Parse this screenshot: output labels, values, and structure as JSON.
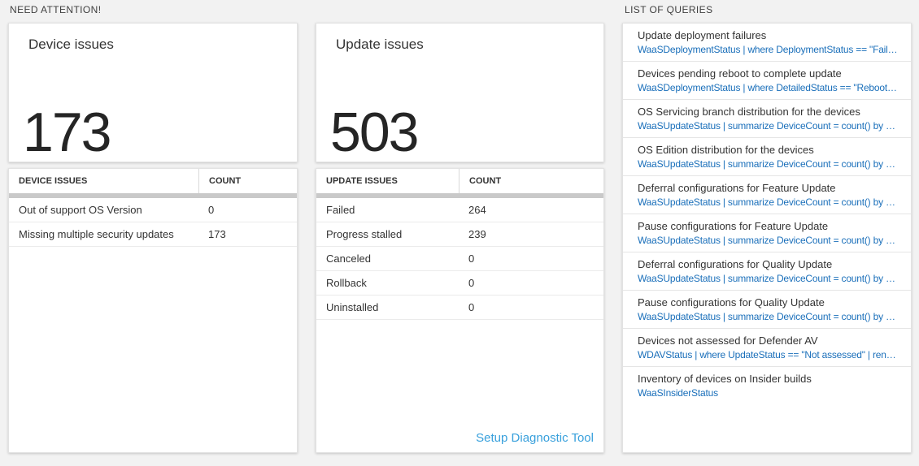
{
  "sections": {
    "need_attention_title": "NEED ATTENTION!",
    "queries_title": "LIST OF QUERIES"
  },
  "device_card": {
    "title": "Device issues",
    "count": "173"
  },
  "update_card": {
    "title": "Update issues",
    "count": "503"
  },
  "device_table": {
    "headers": [
      "DEVICE ISSUES",
      "COUNT"
    ],
    "rows": [
      {
        "label": "Out of support OS Version",
        "count": "0"
      },
      {
        "label": "Missing multiple security updates",
        "count": "173"
      }
    ]
  },
  "update_table": {
    "headers": [
      "UPDATE ISSUES",
      "COUNT"
    ],
    "rows": [
      {
        "label": "Failed",
        "count": "264"
      },
      {
        "label": "Progress stalled",
        "count": "239"
      },
      {
        "label": "Canceled",
        "count": "0"
      },
      {
        "label": "Rollback",
        "count": "0"
      },
      {
        "label": "Uninstalled",
        "count": "0"
      }
    ],
    "footer_link": "Setup Diagnostic Tool"
  },
  "query_list": {
    "items": [
      {
        "title": "Update deployment failures",
        "query": "WaaSDeploymentStatus | where DeploymentStatus == \"Failed\" |..."
      },
      {
        "title": "Devices pending reboot to complete update",
        "query": "WaaSDeploymentStatus | where DetailedStatus == \"Reboot pend..."
      },
      {
        "title": "OS Servicing branch distribution for the devices",
        "query": "WaaSUpdateStatus | summarize DeviceCount = count() by OSSer..."
      },
      {
        "title": "OS Edition distribution for the devices",
        "query": "WaaSUpdateStatus | summarize DeviceCount = count() by OSEdit..."
      },
      {
        "title": "Deferral configurations for Feature Update",
        "query": "WaaSUpdateStatus | summarize DeviceCount = count() by Featur..."
      },
      {
        "title": "Pause configurations for Feature Update",
        "query": "WaaSUpdateStatus | summarize DeviceCount = count() by Featur..."
      },
      {
        "title": "Deferral configurations for Quality Update",
        "query": "WaaSUpdateStatus | summarize DeviceCount = count() by Qualit..."
      },
      {
        "title": "Pause configurations for Quality Update",
        "query": "WaaSUpdateStatus | summarize DeviceCount = count() by Qualit..."
      },
      {
        "title": "Devices not assessed for Defender AV",
        "query": "WDAVStatus | where UpdateStatus == \"Not assessed\" | render ta..."
      },
      {
        "title": "Inventory of devices on Insider builds",
        "query": "WaaSInsiderStatus"
      }
    ]
  },
  "colors": {
    "query_link_blue": "#1a6fba",
    "setup_link_blue": "#38a0dc",
    "big_number_color": "#252525",
    "page_background": "#f2f2f2"
  }
}
